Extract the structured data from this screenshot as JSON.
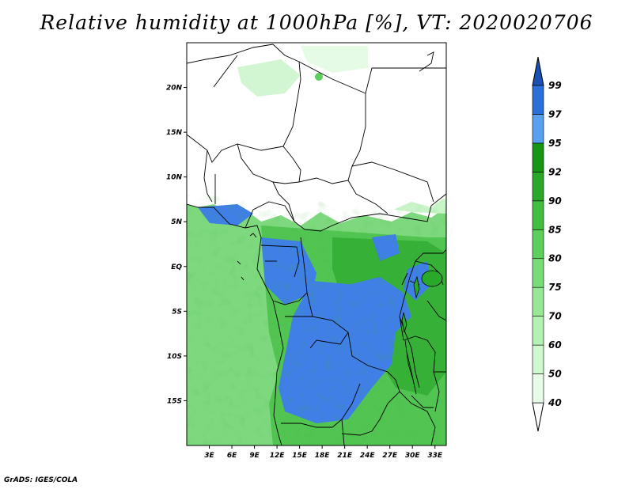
{
  "title": "Relative humidity at 1000hPa [%], VT: 2020020706",
  "credit": "GrADS: IGES/COLA",
  "map": {
    "lon_range": [
      0,
      34.5
    ],
    "lat_range": [
      -20,
      25
    ],
    "lat_ticks": [
      {
        "value": 20,
        "label": "20N"
      },
      {
        "value": 15,
        "label": "15N"
      },
      {
        "value": 10,
        "label": "10N"
      },
      {
        "value": 5,
        "label": "5N"
      },
      {
        "value": 0,
        "label": "EQ"
      },
      {
        "value": -5,
        "label": "5S"
      },
      {
        "value": -10,
        "label": "10S"
      },
      {
        "value": -15,
        "label": "15S"
      }
    ],
    "lon_ticks": [
      {
        "value": 3,
        "label": "3E"
      },
      {
        "value": 6,
        "label": "6E"
      },
      {
        "value": 9,
        "label": "9E"
      },
      {
        "value": 12,
        "label": "12E"
      },
      {
        "value": 15,
        "label": "15E"
      },
      {
        "value": 18,
        "label": "18E"
      },
      {
        "value": 21,
        "label": "21E"
      },
      {
        "value": 24,
        "label": "24E"
      },
      {
        "value": 27,
        "label": "27E"
      },
      {
        "value": 30,
        "label": "30E"
      },
      {
        "value": 33,
        "label": "33E"
      }
    ]
  },
  "colorbar": {
    "levels": [
      "40",
      "50",
      "60",
      "70",
      "75",
      "80",
      "85",
      "90",
      "92",
      "95",
      "97",
      "99"
    ],
    "colors": [
      "#ffffff",
      "#e6fce6",
      "#cef8ce",
      "#b4f1b4",
      "#96e896",
      "#78dc78",
      "#5ccf5c",
      "#40be40",
      "#2aa82a",
      "#149614",
      "#5aa0f0",
      "#2a6ed8",
      "#1a4fb4"
    ]
  },
  "palette": {
    "land_dry": "#ffffff",
    "ocean": "#7ed97e",
    "wet_blue": "#3f7fe6",
    "border": "#000000"
  }
}
